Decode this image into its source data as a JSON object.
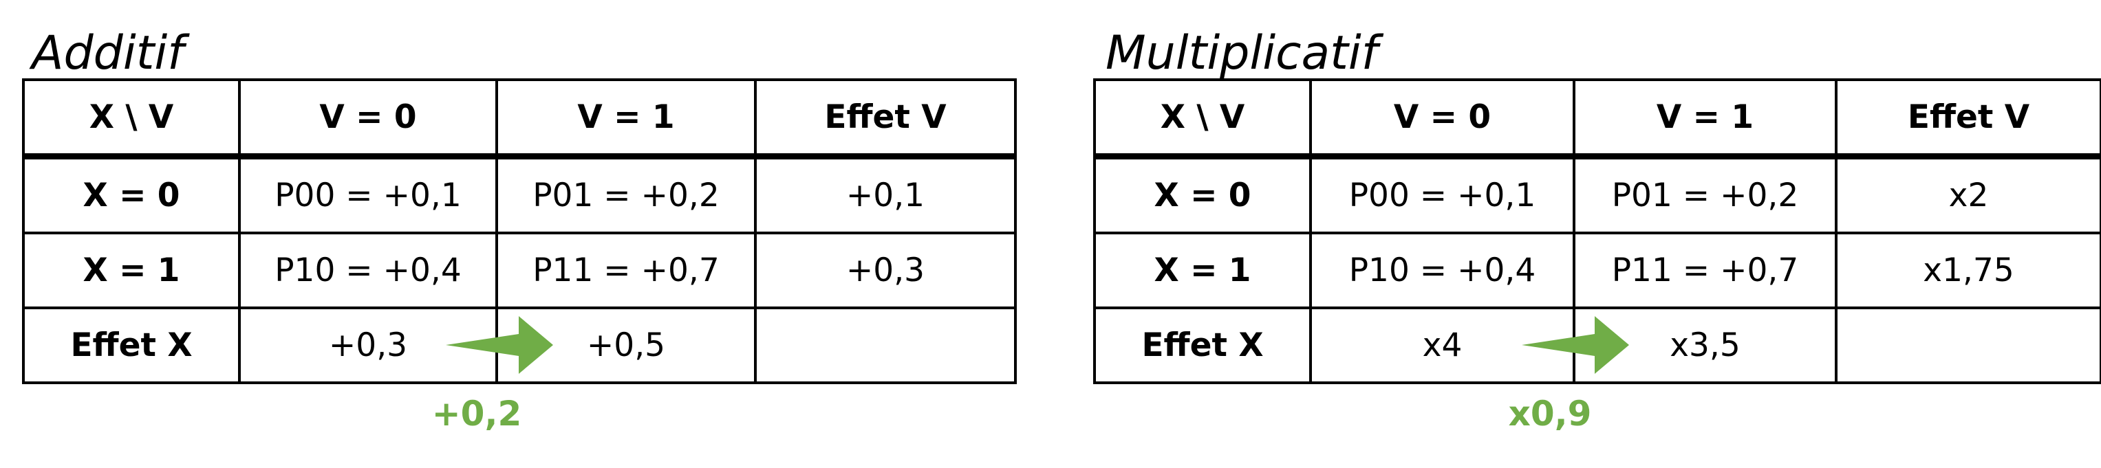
{
  "accent_color": "#70ad47",
  "additive": {
    "title": "Additif",
    "header": [
      "X \\ V",
      "V = 0",
      "V = 1",
      "Effet V"
    ],
    "rows": [
      [
        "X = 0",
        "P00 = +0,1",
        "P01 = +0,2",
        "+0,1"
      ],
      [
        "X = 1",
        "P10 = +0,4",
        "P11 = +0,7",
        "+0,3"
      ],
      [
        "Effet X",
        "+0,3",
        "+0,5",
        ""
      ]
    ],
    "change_label": "+0,2"
  },
  "multiplicative": {
    "title": "Multiplicatif",
    "header": [
      "X \\ V",
      "V = 0",
      "V = 1",
      "Effet V"
    ],
    "rows": [
      [
        "X = 0",
        "P00 = +0,1",
        "P01 = +0,2",
        "x2"
      ],
      [
        "X = 1",
        "P10 = +0,4",
        "P11 = +0,7",
        "x1,75"
      ],
      [
        "Effet X",
        "x4",
        "x3,5",
        ""
      ]
    ],
    "change_label": "x0,9"
  }
}
